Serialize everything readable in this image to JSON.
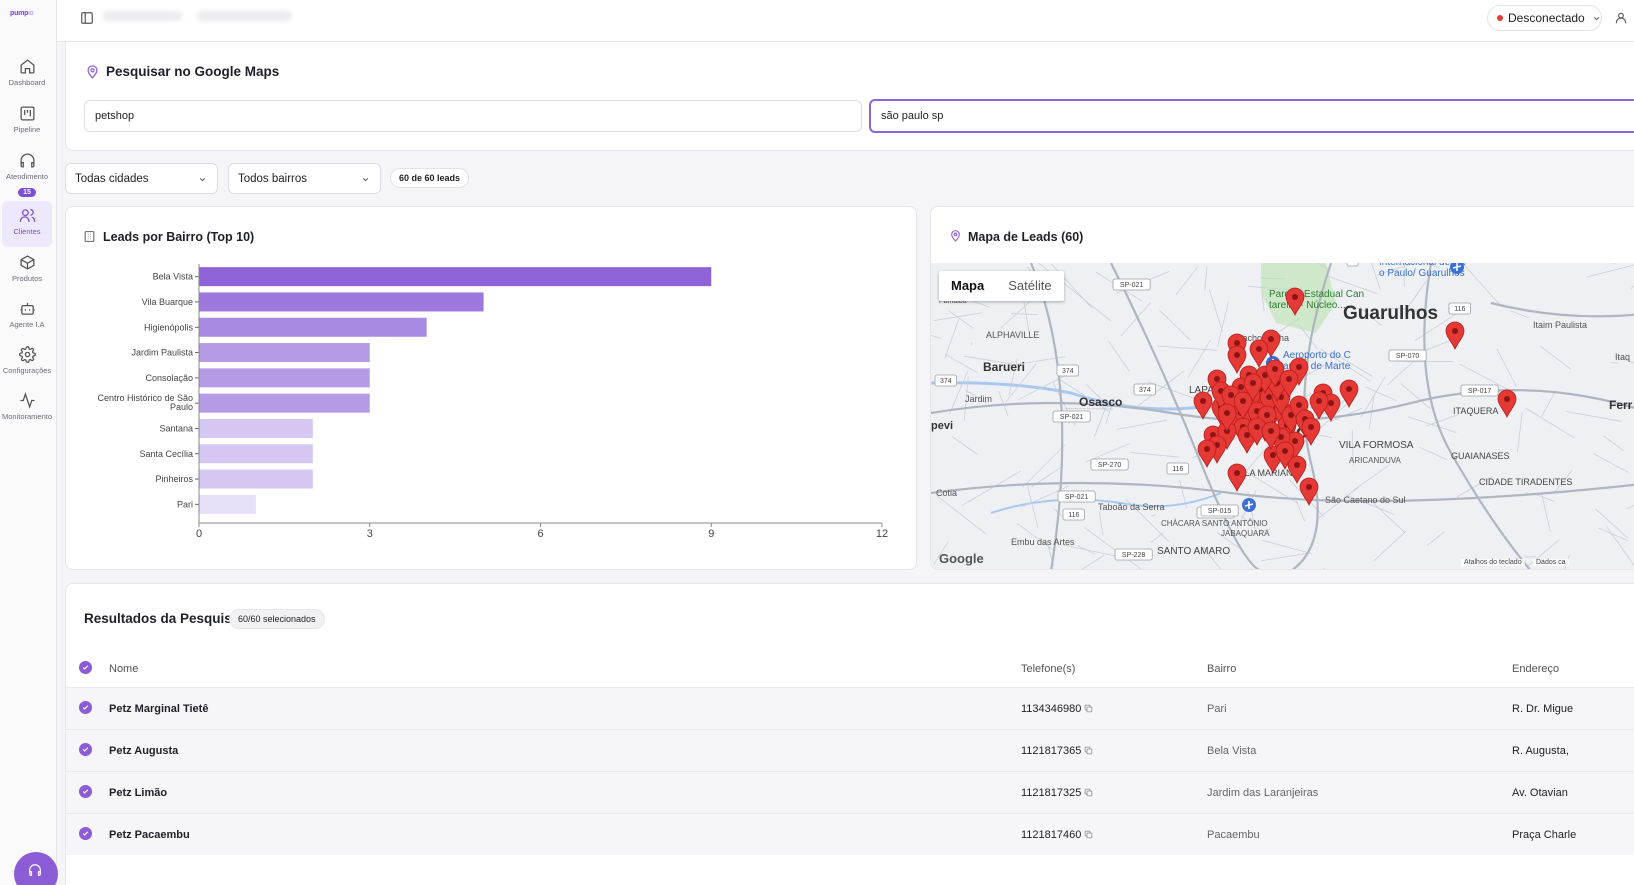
{
  "app": {
    "logo_brand": "pump",
    "logo_suffix": "io",
    "status_label": "Desconectado",
    "status_color": "#e53935",
    "accent_color": "#8b5cd6"
  },
  "sidebar": {
    "items": [
      {
        "label": "Dashboard",
        "icon": "home-icon"
      },
      {
        "label": "Pipeline",
        "icon": "kanban-icon"
      },
      {
        "label": "Atendimento",
        "icon": "headphones-icon",
        "badge": "15"
      },
      {
        "label": "Clientes",
        "icon": "users-icon",
        "active": true
      },
      {
        "label": "Produtos",
        "icon": "box-icon"
      },
      {
        "label": "Agente I.A",
        "icon": "bot-icon"
      },
      {
        "label": "Configurações",
        "icon": "gear-icon"
      },
      {
        "label": "Monitoramento",
        "icon": "activity-icon"
      }
    ]
  },
  "search": {
    "title": "Pesquisar no Google Maps",
    "query_value": "petshop",
    "location_value": "são paulo sp"
  },
  "filters": {
    "city": "Todas cidades",
    "bairro": "Todos bairros",
    "count": "60 de 60 leads"
  },
  "chart_card": {
    "title": "Leads por Bairro (Top 10)"
  },
  "chart_data": {
    "type": "bar",
    "orientation": "horizontal",
    "title": "Leads por Bairro (Top 10)",
    "categories": [
      "Bela Vista",
      "Vila Buarque",
      "Higienópolis",
      "Jardim Paulista",
      "Consolação",
      "Centro Histórico de São Paulo",
      "Santana",
      "Santa Cecília",
      "Pinheiros",
      "Pari"
    ],
    "values": [
      9,
      5,
      4,
      3,
      3,
      3,
      2,
      2,
      2,
      1
    ],
    "xlim": [
      0,
      12
    ],
    "xticks": [
      "0",
      "3",
      "6",
      "9",
      "12"
    ],
    "grid": false,
    "colors": [
      "#8e63d8",
      "#9c77dc",
      "#a98ae2",
      "#b59be6",
      "#b59be6",
      "#b59be6",
      "#d5c7f1",
      "#d5c7f1",
      "#d5c7f1",
      "#e8e0f8"
    ]
  },
  "map_card": {
    "title": "Mapa de Leads (60)",
    "tab_map": "Mapa",
    "tab_satellite": "Satélite",
    "google": "Google",
    "shortcuts": "Atalhos do teclado",
    "data": "Dados ca",
    "labels": [
      "Guarulhos",
      "Barueri",
      "Osasco",
      "ALPHAVILLE",
      "Jardim",
      "pevi",
      "Cotia",
      "Taboão da Serra",
      "Embu das Artes",
      "SANTO AMARO",
      "CHÁCARA SANTO ANTÔNIO",
      "JABAQUARA",
      "São Caetano do Sul",
      "VILA FORMOSA",
      "ARICANDUVA",
      "GUAIANASES",
      "CIDADE TIRADENTES",
      "ITAQUERA",
      "Itaim Paulista",
      "Aeroporto do Campo de Marte",
      "Parque Estadual Cantareira - Núcleo...",
      "Cachoeirinha",
      "LAPA",
      "VILA MARIANA",
      "ulo",
      "Ferr Vasco",
      "Itaq",
      "Internacional de São Paulo/ Guarulhos",
      "Pamaiba"
    ],
    "roads": [
      "SP-021",
      "SP-021",
      "SP-021",
      "SP-021",
      "374",
      "374",
      "374",
      "116",
      "116",
      "116",
      "SP-070",
      "SP-017",
      "SP-270",
      "SP-015",
      "SP-228",
      "S"
    ]
  },
  "results": {
    "title": "Resultados da Pesquisa",
    "selected": "60/60 selecionados",
    "headers": {
      "name": "Nome",
      "phone": "Telefone(s)",
      "bairro": "Bairro",
      "address": "Endereço"
    },
    "rows": [
      {
        "name": "Petz Marginal Tietê",
        "phone": "1134346980",
        "bairro": "Pari",
        "address": "R. Dr. Migue"
      },
      {
        "name": "Petz Augusta",
        "phone": "1121817365",
        "bairro": "Bela Vista",
        "address": "R. Augusta,"
      },
      {
        "name": "Petz Limão",
        "phone": "1121817325",
        "bairro": "Jardim das Laranjeiras",
        "address": "Av. Otavian"
      },
      {
        "name": "Petz Pacaembu",
        "phone": "1121817460",
        "bairro": "Pacaembu",
        "address": "Praça Charle"
      }
    ]
  }
}
